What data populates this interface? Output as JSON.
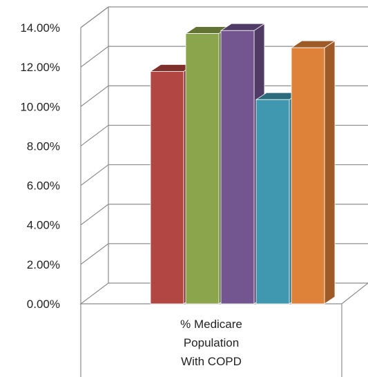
{
  "chart_data": {
    "type": "bar",
    "style": "3d-clustered-column",
    "categories": [
      "% Medicare Population With COPD"
    ],
    "category_label_lines": [
      "% Medicare",
      "Population",
      "With COPD"
    ],
    "series": [
      {
        "values": [
          0.1178
        ],
        "color": "#b24642",
        "top_color": "#7f2f2c",
        "side_color": "#7f2f2c"
      },
      {
        "values": [
          0.137
        ],
        "color": "#8ba54c",
        "top_color": "#617434",
        "side_color": "#617434"
      },
      {
        "values": [
          0.1385
        ],
        "color": "#735590",
        "top_color": "#503b66",
        "side_color": "#503b66"
      },
      {
        "values": [
          0.1035
        ],
        "color": "#3f98b0",
        "top_color": "#2c6b7c",
        "side_color": "#2c6b7c"
      },
      {
        "values": [
          0.1298
        ],
        "color": "#de8139",
        "top_color": "#9e5b27",
        "side_color": "#9e5b27"
      }
    ],
    "ylim": [
      0,
      0.14
    ],
    "ytick_values": [
      0,
      0.02,
      0.04,
      0.06,
      0.08,
      0.1,
      0.12,
      0.14
    ],
    "ytick_labels": [
      "0.00%",
      "2.00%",
      "4.00%",
      "6.00%",
      "8.00%",
      "10.00%",
      "12.00%",
      "14.00%"
    ],
    "gridlines": true,
    "legend": "none",
    "title": "",
    "xlabel": "",
    "ylabel": ""
  }
}
